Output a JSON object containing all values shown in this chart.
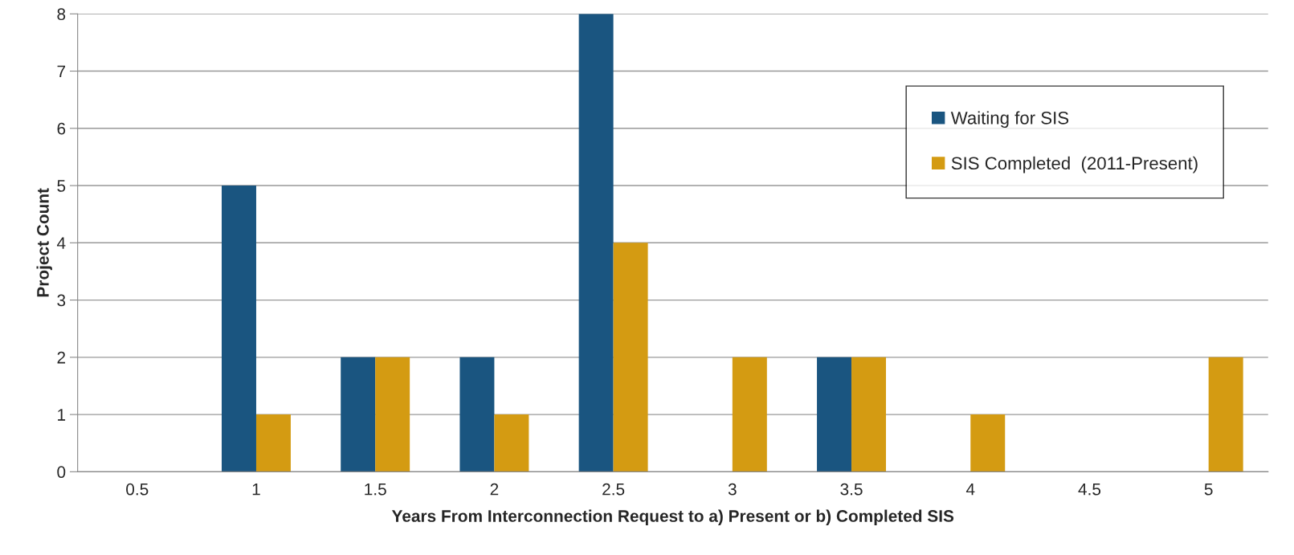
{
  "chart_data": {
    "type": "bar",
    "xlabel": "Years From Interconnection Request to a) Present or b) Completed SIS",
    "ylabel": "Project Count",
    "categories": [
      "0.5",
      "1",
      "1.5",
      "2",
      "2.5",
      "3",
      "3.5",
      "4",
      "4.5",
      "5"
    ],
    "series": [
      {
        "name": "Waiting for SIS",
        "color": "#1a5580",
        "values": [
          0,
          5,
          2,
          2,
          8,
          0,
          2,
          0,
          0,
          0
        ]
      },
      {
        "name": "SIS Completed  (2011-Present)",
        "color": "#d49b12",
        "values": [
          0,
          1,
          2,
          1,
          4,
          2,
          2,
          1,
          0,
          2
        ]
      }
    ],
    "ylim": [
      0,
      8
    ],
    "yticks": [
      0,
      1,
      2,
      3,
      4,
      5,
      6,
      7,
      8
    ],
    "grid": "y",
    "legend": "right"
  }
}
